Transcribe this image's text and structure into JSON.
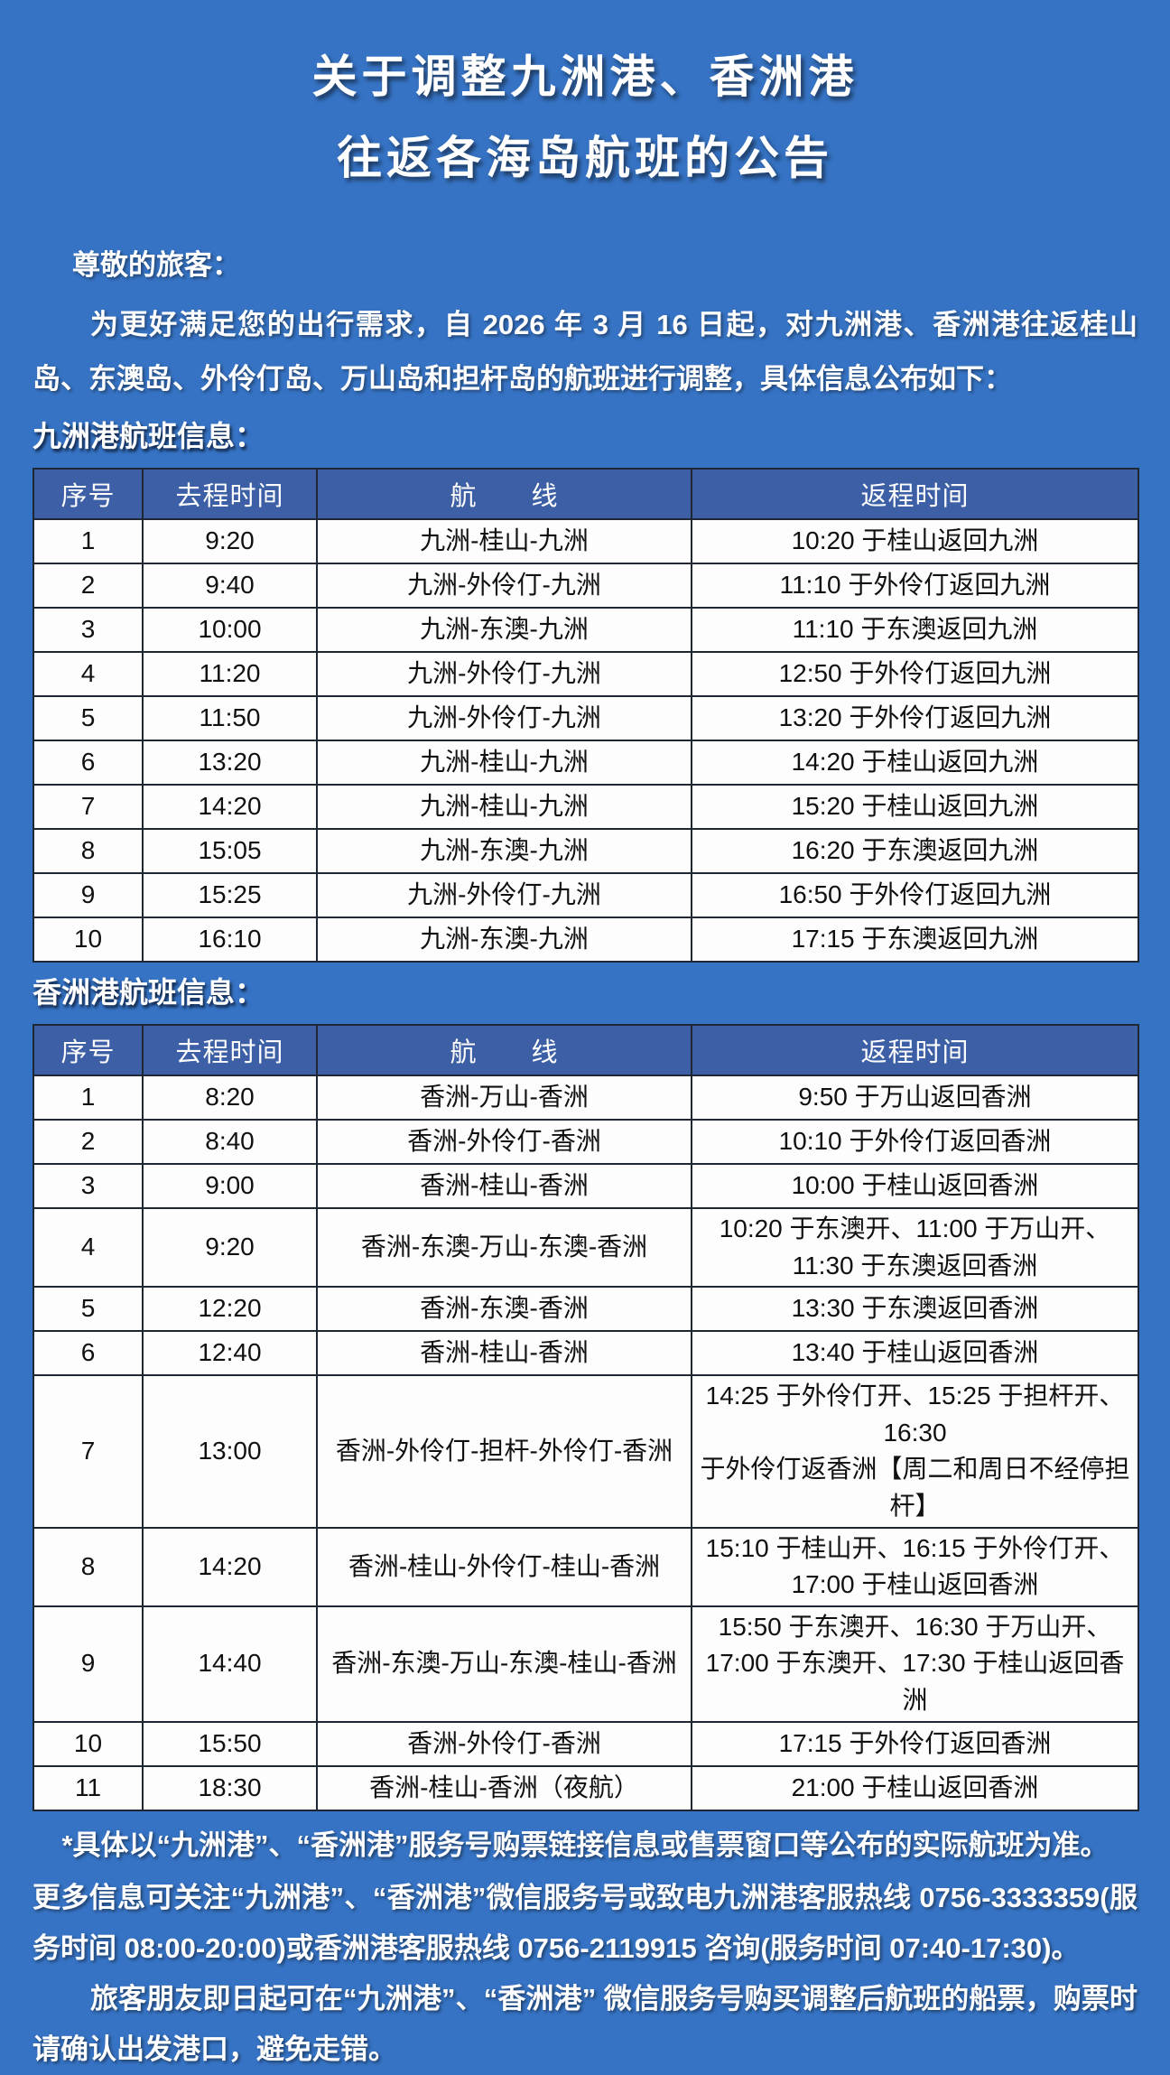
{
  "colors": {
    "page_background": "#3673c4",
    "table_header_background": "#3d5fa5",
    "table_border": "#1f2733",
    "text_on_blue": "#ffffff",
    "text_in_table": "#101010"
  },
  "title": {
    "line1": "关于调整九洲港、香洲港",
    "line2": "往返各海岛航班的公告"
  },
  "intro": {
    "salutation": "尊敬的旅客：",
    "body": "为更好满足您的出行需求，自 2026 年 3 月 16 日起，对九洲港、香洲港往返桂山岛、东澳岛、外伶仃岛、万山岛和担杆岛的航班进行调整，具体信息公布如下："
  },
  "table_headers": [
    "序号",
    "去程时间",
    "航　　线",
    "返程时间"
  ],
  "sections": {
    "jiuzhou": {
      "label": "九洲港航班信息：",
      "rows": [
        {
          "seq": "1",
          "depart": "9:20",
          "route": "九洲-桂山-九洲",
          "return": "10:20 于桂山返回九洲"
        },
        {
          "seq": "2",
          "depart": "9:40",
          "route": "九洲-外伶仃-九洲",
          "return": "11:10 于外伶仃返回九洲"
        },
        {
          "seq": "3",
          "depart": "10:00",
          "route": "九洲-东澳-九洲",
          "return": "11:10 于东澳返回九洲"
        },
        {
          "seq": "4",
          "depart": "11:20",
          "route": "九洲-外伶仃-九洲",
          "return": "12:50 于外伶仃返回九洲"
        },
        {
          "seq": "5",
          "depart": "11:50",
          "route": "九洲-外伶仃-九洲",
          "return": "13:20 于外伶仃返回九洲"
        },
        {
          "seq": "6",
          "depart": "13:20",
          "route": "九洲-桂山-九洲",
          "return": "14:20 于桂山返回九洲"
        },
        {
          "seq": "7",
          "depart": "14:20",
          "route": "九洲-桂山-九洲",
          "return": "15:20 于桂山返回九洲"
        },
        {
          "seq": "8",
          "depart": "15:05",
          "route": "九洲-东澳-九洲",
          "return": "16:20 于东澳返回九洲"
        },
        {
          "seq": "9",
          "depart": "15:25",
          "route": "九洲-外伶仃-九洲",
          "return": "16:50 于外伶仃返回九洲"
        },
        {
          "seq": "10",
          "depart": "16:10",
          "route": "九洲-东澳-九洲",
          "return": "17:15 于东澳返回九洲"
        }
      ]
    },
    "xiangzhou": {
      "label": "香洲港航班信息：",
      "rows": [
        {
          "seq": "1",
          "depart": "8:20",
          "route": "香洲-万山-香洲",
          "return": "9:50 于万山返回香洲"
        },
        {
          "seq": "2",
          "depart": "8:40",
          "route": "香洲-外伶仃-香洲",
          "return": "10:10 于外伶仃返回香洲"
        },
        {
          "seq": "3",
          "depart": "9:00",
          "route": "香洲-桂山-香洲",
          "return": "10:00 于桂山返回香洲"
        },
        {
          "seq": "4",
          "depart": "9:20",
          "route": "香洲-东澳-万山-东澳-香洲",
          "return": "10:20 于东澳开、11:00 于万山开、\n11:30 于东澳返回香洲",
          "tall": true
        },
        {
          "seq": "5",
          "depart": "12:20",
          "route": "香洲-东澳-香洲",
          "return": "13:30 于东澳返回香洲"
        },
        {
          "seq": "6",
          "depart": "12:40",
          "route": "香洲-桂山-香洲",
          "return": "13:40 于桂山返回香洲"
        },
        {
          "seq": "7",
          "depart": "13:00",
          "route": "香洲-外伶仃-担杆-外伶仃-香洲",
          "return": "14:25 于外伶仃开、15:25 于担杆开、16:30\n于外伶仃返香洲【周二和周日不经停担杆】",
          "tall": true
        },
        {
          "seq": "8",
          "depart": "14:20",
          "route": "香洲-桂山-外伶仃-桂山-香洲",
          "return": "15:10 于桂山开、16:15 于外伶仃开、\n17:00 于桂山返回香洲",
          "tall": true
        },
        {
          "seq": "9",
          "depart": "14:40",
          "route": "香洲-东澳-万山-东澳-桂山-香洲",
          "return": "15:50 于东澳开、16:30 于万山开、\n17:00 于东澳开、17:30 于桂山返回香洲",
          "tall": true
        },
        {
          "seq": "10",
          "depart": "15:50",
          "route": "香洲-外伶仃-香洲",
          "return": "17:15 于外伶仃返回香洲"
        },
        {
          "seq": "11",
          "depart": "18:30",
          "route": "香洲-桂山-香洲（夜航）",
          "return": "21:00 于桂山返回香洲"
        }
      ]
    }
  },
  "footnotes": [
    "*具体以“九洲港”、“香洲港”服务号购票链接信息或售票窗口等公布的实际航班为准。",
    "更多信息可关注“九洲港”、“香洲港”微信服务号或致电九洲港客服热线 0756-3333359(服务时间 08:00-20:00)或香洲港客服热线 0756-2119915 咨询(服务时间 07:40-17:30)。",
    "旅客朋友即日起可在“九洲港”、“香洲港” 微信服务号购买调整后航班的船票，购票时请确认出发港口，避免走错。"
  ]
}
